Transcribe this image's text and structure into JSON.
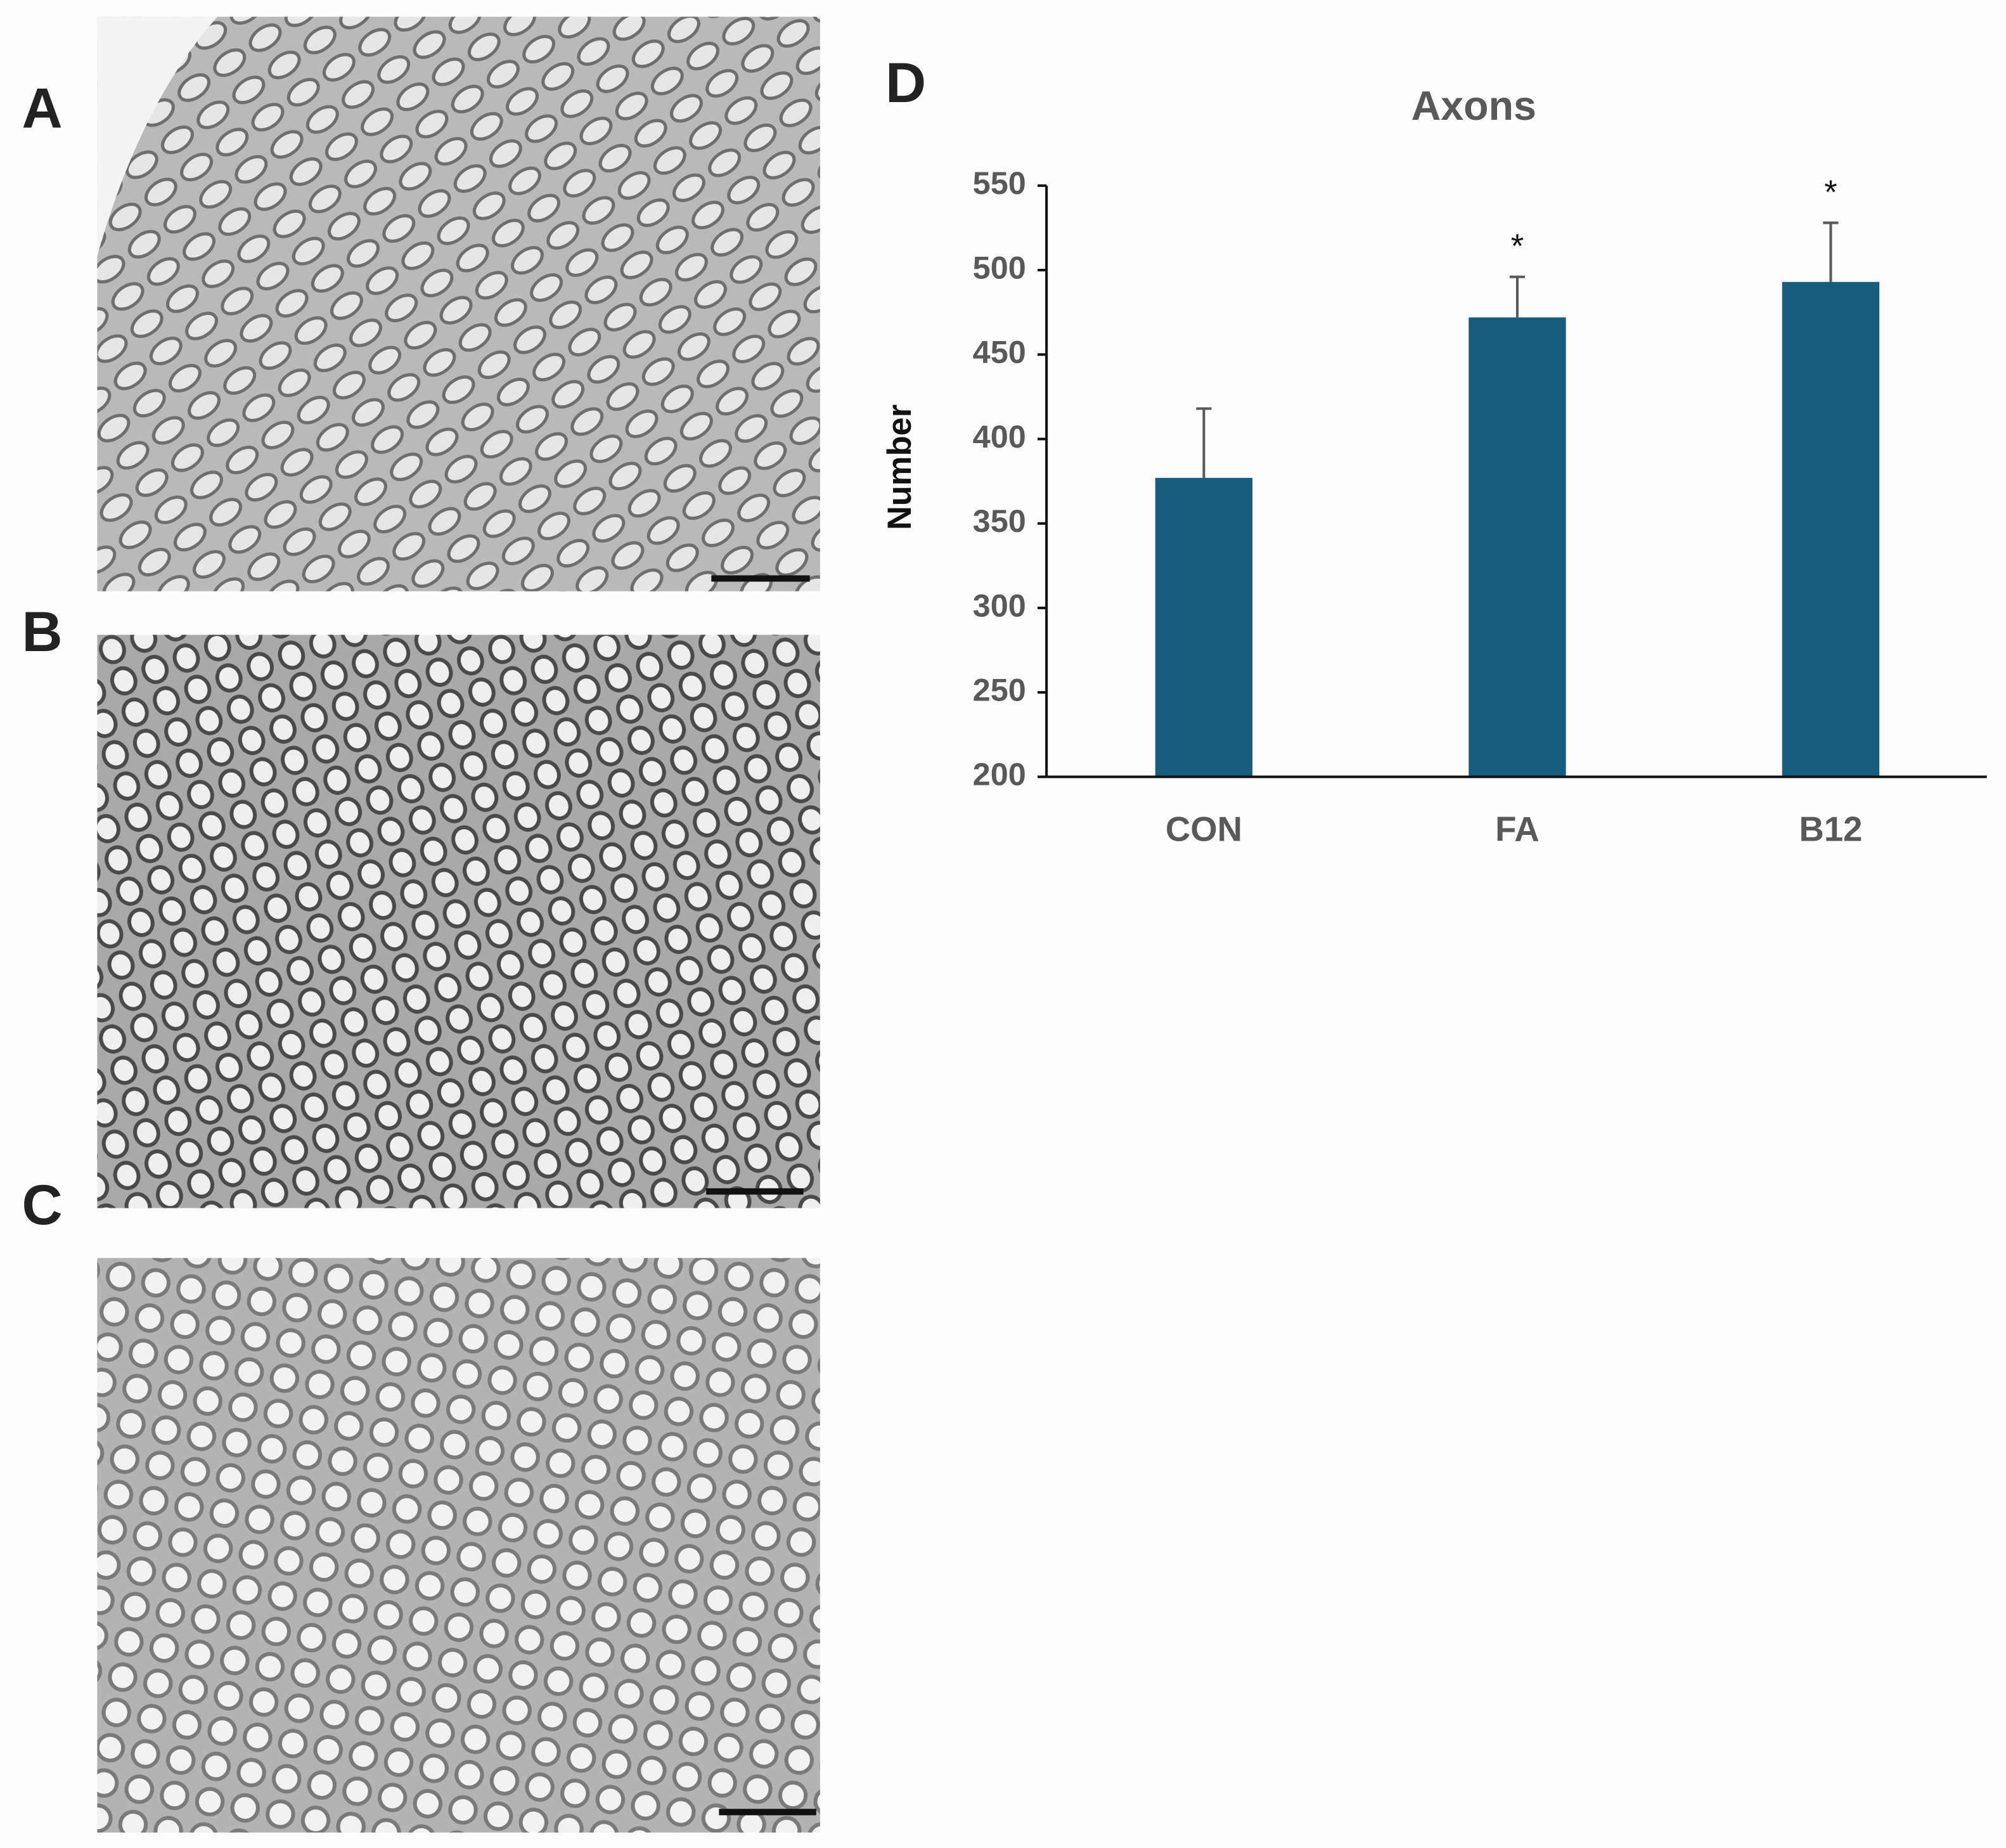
{
  "panel_labels": [
    "A",
    "B",
    "C",
    "D"
  ],
  "chart_data": {
    "type": "bar",
    "title": "Axons",
    "y_label": "Number",
    "categories": [
      "CON",
      "FA",
      "B12"
    ],
    "values": [
      377,
      472,
      493
    ],
    "errors": [
      41,
      24,
      35
    ],
    "annotations": [
      null,
      "*",
      "*"
    ],
    "color": "#175d7e",
    "ylim": [
      200,
      550
    ],
    "yticks": [
      200,
      250,
      300,
      350,
      400,
      450,
      500,
      550
    ],
    "grid": false
  }
}
